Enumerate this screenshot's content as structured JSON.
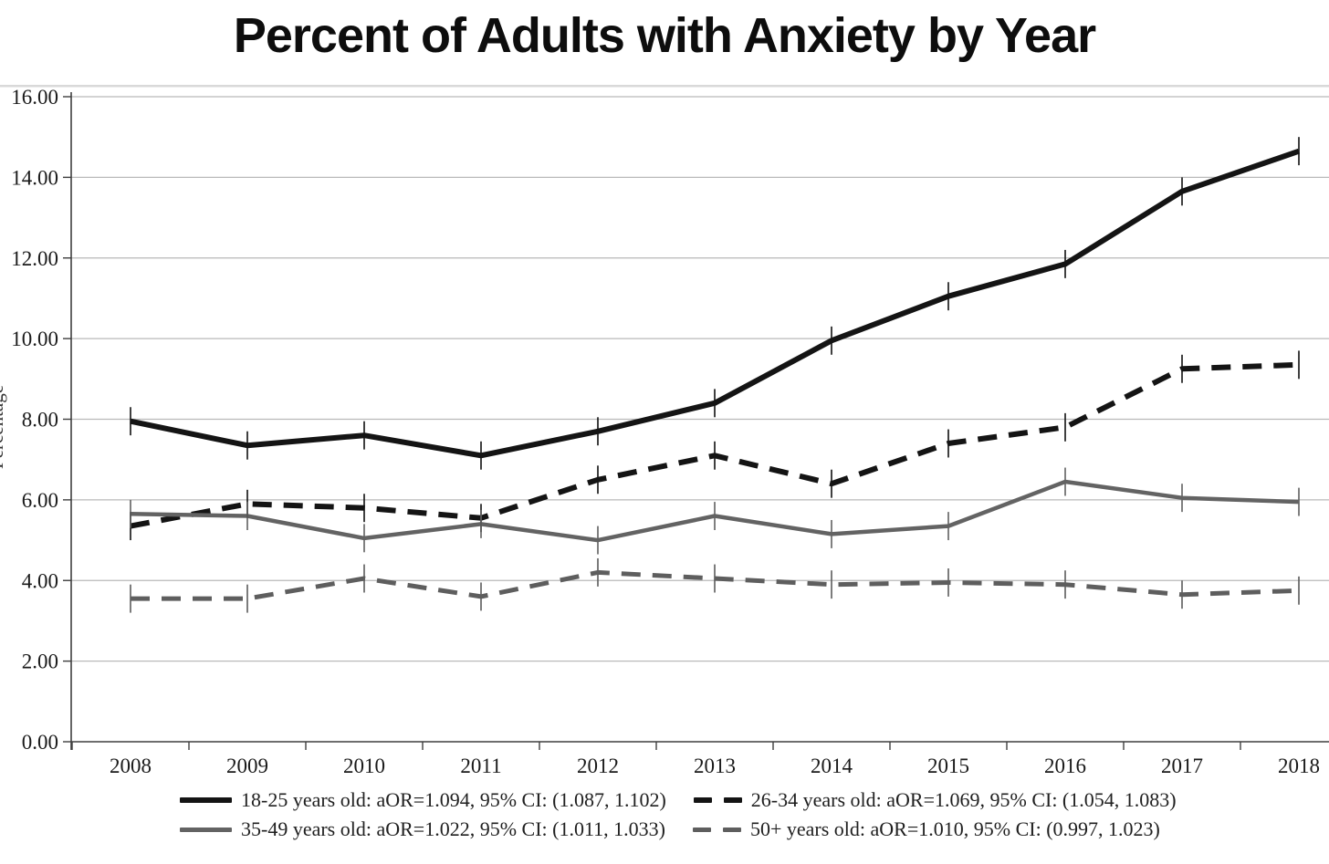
{
  "title": "Percent of Adults with Anxiety by Year",
  "y_axis": {
    "label": "Percentage"
  },
  "colors": {
    "background": "#ffffff",
    "top_band": "#d9d9d9",
    "gridline": "#b9b9b9",
    "axis": "#3f3f3f",
    "tick_text": "#1a1a1a"
  },
  "chart_data": {
    "type": "line",
    "title": "Percent of Adults with Anxiety by Year",
    "xlabel": "",
    "ylabel": "Percentage",
    "ylim": [
      0,
      16
    ],
    "y_tick_step": 2,
    "y_tick_labels": [
      "0.00",
      "2.00",
      "4.00",
      "6.00",
      "8.00",
      "10.00",
      "12.00",
      "14.00",
      "16.00"
    ],
    "x_tick_labels": [
      "2008",
      "2009",
      "2010",
      "2011",
      "2012",
      "2013",
      "2014",
      "2015",
      "2016",
      "2017",
      "2018"
    ],
    "grid": true,
    "legend_position": "bottom",
    "error_bars": true,
    "error_bar_halfwidth": 0.35,
    "series": [
      {
        "name": "18-25 years old: aOR=1.094, 95% CI: (1.087, 1.102)",
        "color": "#141414",
        "dash": false,
        "stroke_width": 6,
        "values": [
          7.95,
          7.35,
          7.6,
          7.1,
          7.7,
          8.4,
          9.95,
          11.05,
          11.85,
          13.65,
          14.65
        ]
      },
      {
        "name": "26-34 years old: aOR=1.069, 95% CI: (1.054, 1.083)",
        "color": "#141414",
        "dash": true,
        "stroke_width": 6,
        "values": [
          5.35,
          5.9,
          5.8,
          5.55,
          6.5,
          7.1,
          6.4,
          7.4,
          7.8,
          9.25,
          9.35
        ]
      },
      {
        "name": "35-49 years old: aOR=1.022, 95% CI: (1.011, 1.033)",
        "color": "#636363",
        "dash": false,
        "stroke_width": 4.5,
        "values": [
          5.65,
          5.6,
          5.05,
          5.4,
          5.0,
          5.6,
          5.15,
          5.35,
          6.45,
          6.05,
          5.95
        ]
      },
      {
        "name": "50+ years old: aOR=1.010, 95% CI: (0.997, 1.023)",
        "color": "#5e5e5e",
        "dash": true,
        "stroke_width": 5,
        "values": [
          3.55,
          3.55,
          4.05,
          3.6,
          4.2,
          4.05,
          3.9,
          3.95,
          3.9,
          3.65,
          3.75
        ]
      }
    ]
  }
}
